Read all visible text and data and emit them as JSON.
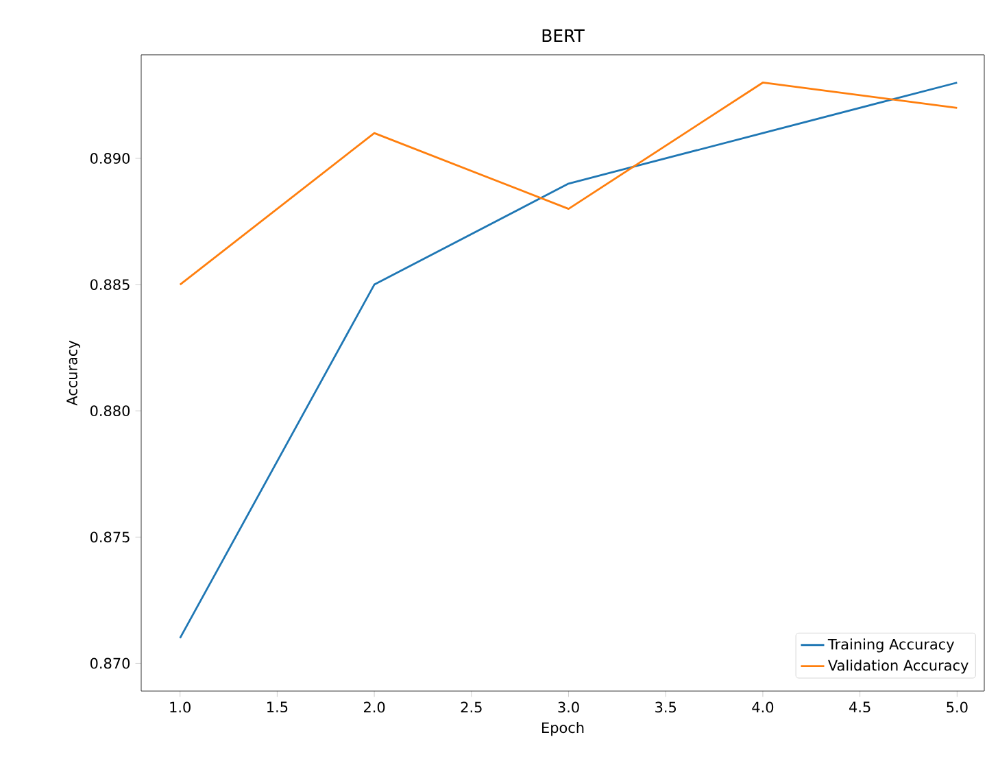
{
  "chart_data": {
    "type": "line",
    "title": "BERT",
    "xlabel": "Epoch",
    "ylabel": "Accuracy",
    "x": [
      1,
      2,
      3,
      4,
      5
    ],
    "series": [
      {
        "name": "Training Accuracy",
        "color": "#1f77b4",
        "values": [
          0.871,
          0.885,
          0.889,
          0.891,
          0.893
        ]
      },
      {
        "name": "Validation Accuracy",
        "color": "#ff7f0e",
        "values": [
          0.885,
          0.891,
          0.888,
          0.893,
          0.892
        ]
      }
    ],
    "xlim": [
      0.8,
      5.14
    ],
    "ylim": [
      0.8689,
      0.8941
    ],
    "xticks": [
      {
        "value": 1,
        "label": "1.0"
      },
      {
        "value": 1.5,
        "label": "1.5"
      },
      {
        "value": 2,
        "label": "2.0"
      },
      {
        "value": 2.5,
        "label": "2.5"
      },
      {
        "value": 3,
        "label": "3.0"
      },
      {
        "value": 3.5,
        "label": "3.5"
      },
      {
        "value": 4,
        "label": "4.0"
      },
      {
        "value": 4.5,
        "label": "4.5"
      },
      {
        "value": 5,
        "label": "5.0"
      }
    ],
    "yticks": [
      {
        "value": 0.87,
        "label": "0.870"
      },
      {
        "value": 0.875,
        "label": "0.875"
      },
      {
        "value": 0.88,
        "label": "0.880"
      },
      {
        "value": 0.885,
        "label": "0.885"
      },
      {
        "value": 0.89,
        "label": "0.890"
      }
    ],
    "legend": "bottom right",
    "grid": false,
    "marker": "none",
    "line_style": "solid"
  }
}
